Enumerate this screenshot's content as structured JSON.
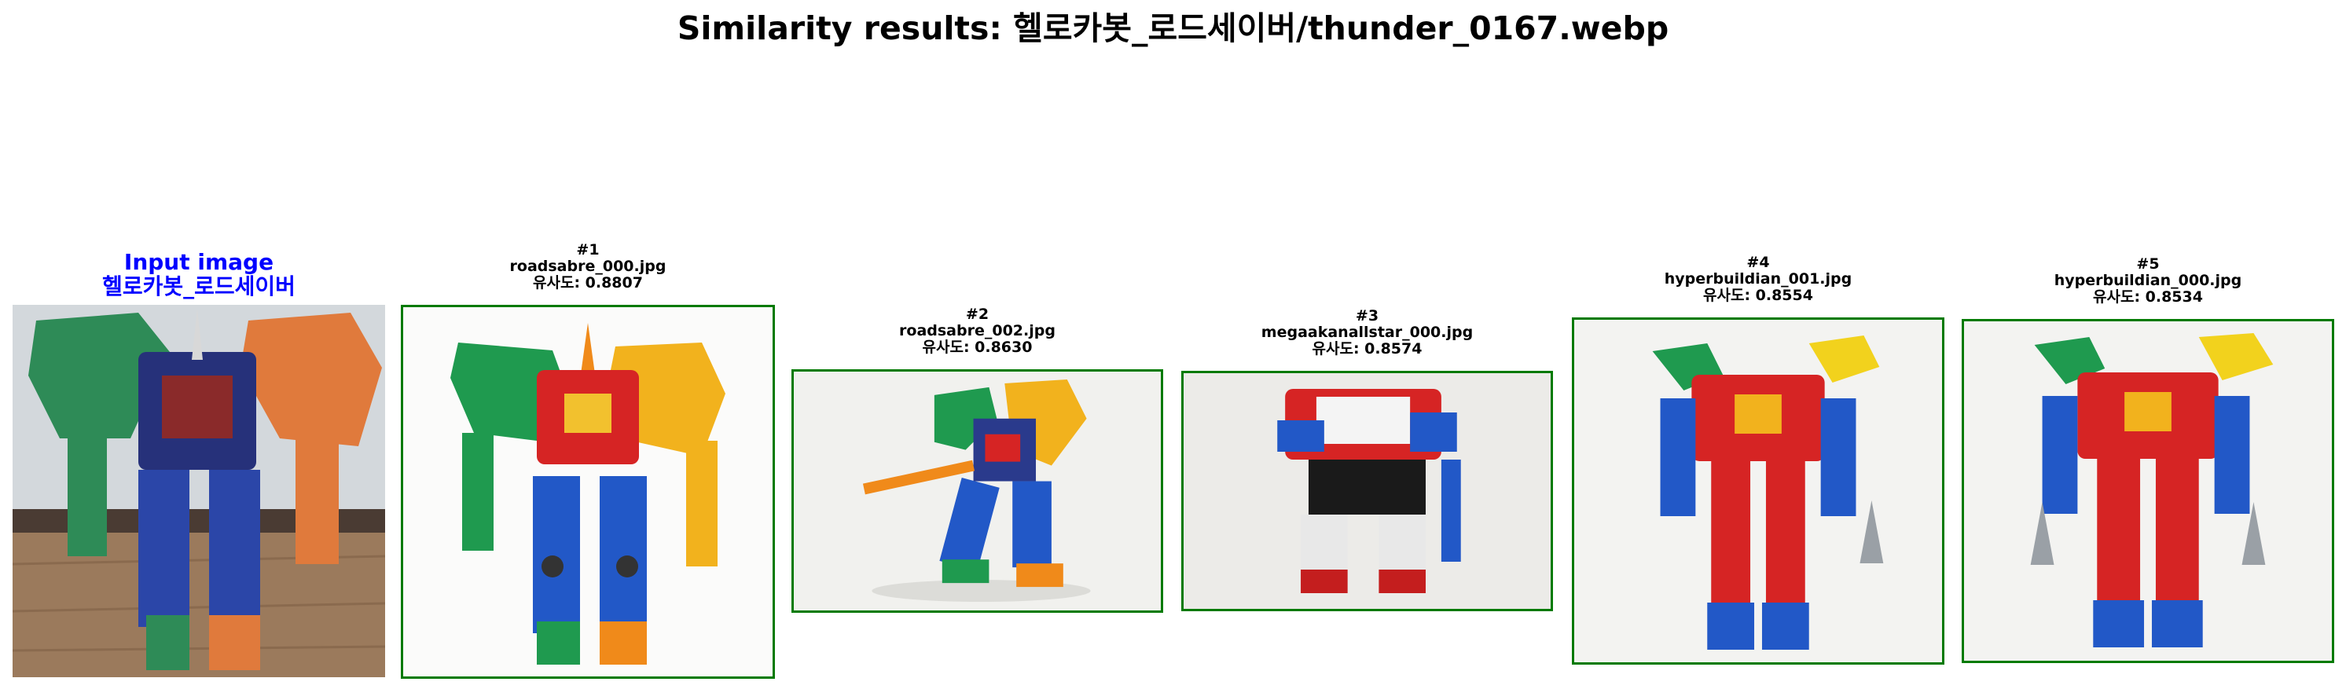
{
  "title": "Similarity results: 헬로카봇_로드세이버/thunder_0167.webp",
  "input": {
    "line1": "Input image",
    "line2": "헬로카봇_로드세이버"
  },
  "results": [
    {
      "rank": "#1",
      "file": "roadsabre_000.jpg",
      "score": "유사도: 0.8807"
    },
    {
      "rank": "#2",
      "file": "roadsabre_002.jpg",
      "score": "유사도: 0.8630"
    },
    {
      "rank": "#3",
      "file": "megaakanallstar_000.jpg",
      "score": "유사도: 0.8574"
    },
    {
      "rank": "#4",
      "file": "hyperbuildian_001.jpg",
      "score": "유사도: 0.8554"
    },
    {
      "rank": "#5",
      "file": "hyperbuildian_000.jpg",
      "score": "유사도: 0.8534"
    }
  ],
  "colors": {
    "input_caption": "#0000ff",
    "match_border": "#007a00"
  }
}
